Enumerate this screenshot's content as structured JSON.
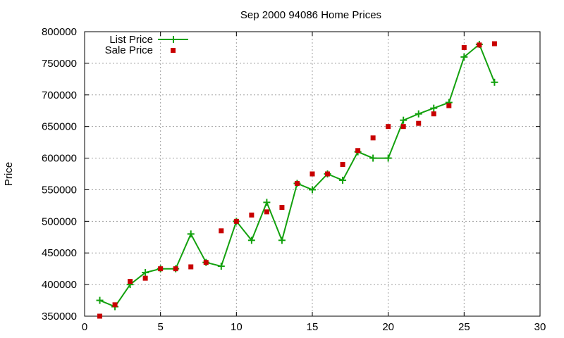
{
  "chart_data": {
    "type": "line",
    "title": "Sep 2000 94086 Home Prices",
    "xlabel": "",
    "ylabel": "Price",
    "xlim": [
      0,
      30
    ],
    "ylim": [
      350000,
      800000
    ],
    "x_ticks": [
      0,
      5,
      10,
      15,
      20,
      25,
      30
    ],
    "y_ticks": [
      350000,
      400000,
      450000,
      500000,
      550000,
      600000,
      650000,
      700000,
      750000,
      800000
    ],
    "grid": true,
    "legend_position": "top-left",
    "series": [
      {
        "name": "List Price",
        "style": "line-with-plus-markers",
        "color": "#13a10e",
        "x": [
          1,
          2,
          3,
          4,
          5,
          6,
          7,
          8,
          9,
          10,
          11,
          12,
          13,
          14,
          15,
          16,
          17,
          18,
          19,
          20,
          21,
          22,
          23,
          24,
          25,
          26,
          27
        ],
        "y": [
          375000,
          365000,
          400000,
          419000,
          425000,
          425000,
          480000,
          435000,
          429000,
          500000,
          470000,
          530000,
          470000,
          560000,
          550000,
          575000,
          565000,
          610000,
          600000,
          600000,
          660000,
          670000,
          679000,
          688000,
          760000,
          780000,
          720000
        ]
      },
      {
        "name": "Sale Price",
        "style": "square-markers",
        "color": "#c80000",
        "x": [
          1,
          2,
          3,
          4,
          5,
          6,
          7,
          8,
          9,
          10,
          11,
          12,
          13,
          14,
          15,
          16,
          17,
          18,
          19,
          20,
          21,
          22,
          23,
          24,
          25,
          26,
          27
        ],
        "y": [
          350000,
          368000,
          405000,
          410000,
          425000,
          425000,
          428000,
          435000,
          485000,
          500000,
          510000,
          515000,
          522000,
          560000,
          575000,
          575000,
          590000,
          612000,
          632000,
          650000,
          650000,
          655000,
          670000,
          683000,
          775000,
          779000,
          781000
        ]
      }
    ]
  }
}
